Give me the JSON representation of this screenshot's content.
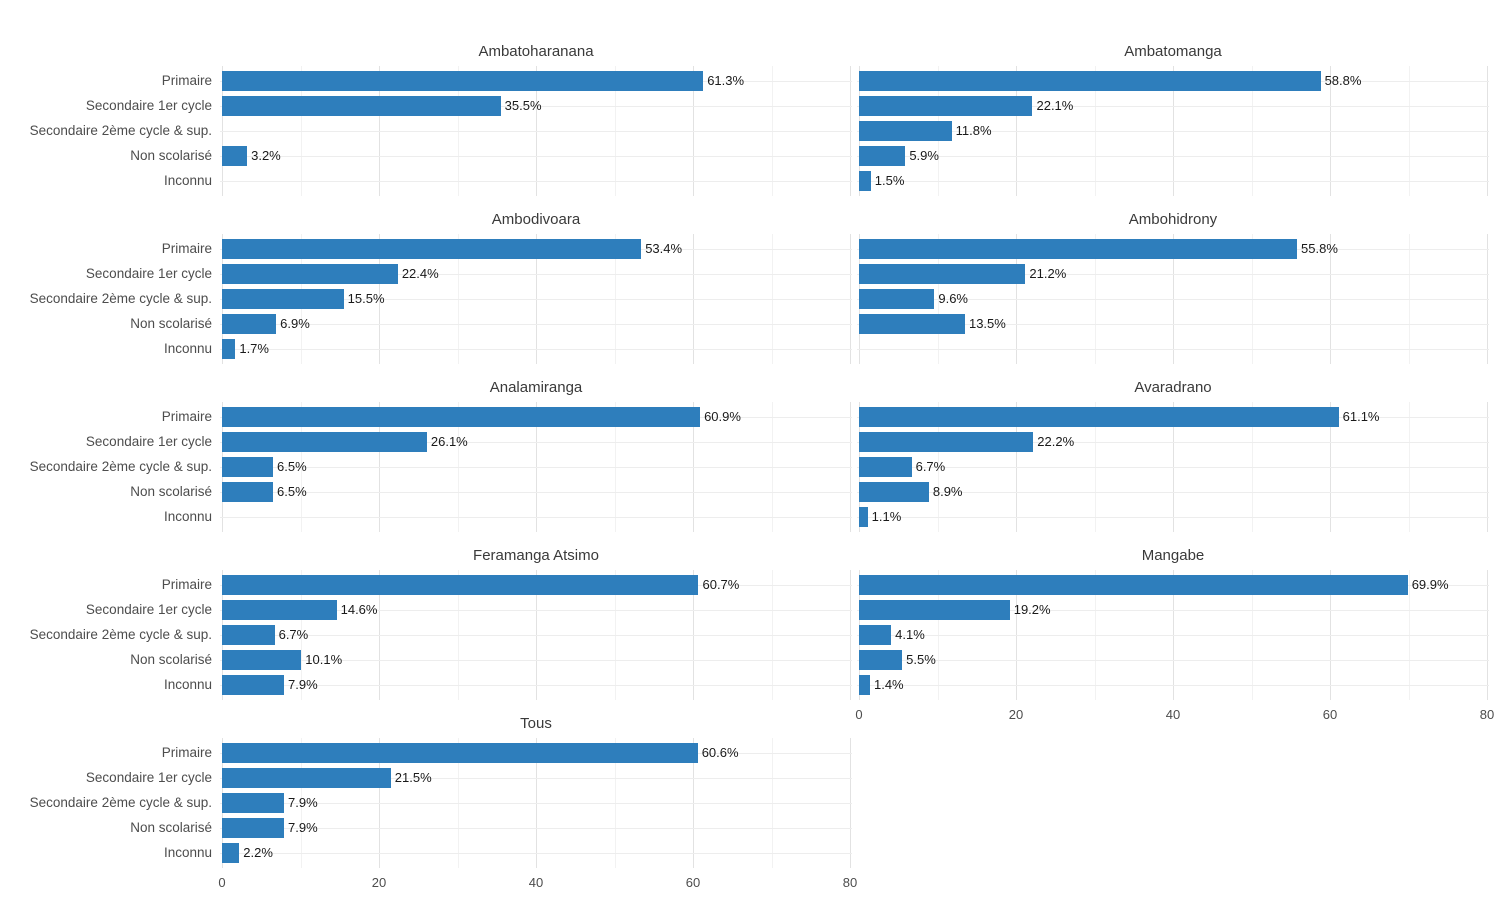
{
  "chart_data": {
    "type": "bar",
    "orientation": "horizontal",
    "title": "",
    "xlabel": "",
    "ylabel": "",
    "xlim": [
      0,
      80
    ],
    "x_ticks": [
      0,
      20,
      40,
      60,
      80
    ],
    "x_minor_ticks": [
      10,
      30,
      50,
      70
    ],
    "grid": true,
    "bar_color": "#2e7ebc",
    "categories": [
      "Primaire",
      "Secondaire 1er cycle",
      "Secondaire 2ème cycle & sup.",
      "Non scolarisé",
      "Inconnu"
    ],
    "facets": [
      {
        "title": "Ambatoharanana",
        "values": [
          61.3,
          35.5,
          null,
          3.2,
          null
        ],
        "labels": [
          "61.3%",
          "35.5%",
          null,
          "3.2%",
          null
        ],
        "show_x_axis": false
      },
      {
        "title": "Ambatomanga",
        "values": [
          58.8,
          22.1,
          11.8,
          5.9,
          1.5
        ],
        "labels": [
          "58.8%",
          "22.1%",
          "11.8%",
          "5.9%",
          "1.5%"
        ],
        "show_x_axis": false
      },
      {
        "title": "Ambodivoara",
        "values": [
          53.4,
          22.4,
          15.5,
          6.9,
          1.7
        ],
        "labels": [
          "53.4%",
          "22.4%",
          "15.5%",
          "6.9%",
          "1.7%"
        ],
        "show_x_axis": false
      },
      {
        "title": "Ambohidrony",
        "values": [
          55.8,
          21.2,
          9.6,
          13.5,
          null
        ],
        "labels": [
          "55.8%",
          "21.2%",
          "9.6%",
          "13.5%",
          null
        ],
        "show_x_axis": false
      },
      {
        "title": "Analamiranga",
        "values": [
          60.9,
          26.1,
          6.5,
          6.5,
          null
        ],
        "labels": [
          "60.9%",
          "26.1%",
          "6.5%",
          "6.5%",
          null
        ],
        "show_x_axis": false
      },
      {
        "title": "Avaradrano",
        "values": [
          61.1,
          22.2,
          6.7,
          8.9,
          1.1
        ],
        "labels": [
          "61.1%",
          "22.2%",
          "6.7%",
          "8.9%",
          "1.1%"
        ],
        "show_x_axis": false
      },
      {
        "title": "Feramanga Atsimo",
        "values": [
          60.7,
          14.6,
          6.7,
          10.1,
          7.9
        ],
        "labels": [
          "60.7%",
          "14.6%",
          "6.7%",
          "10.1%",
          "7.9%"
        ],
        "show_x_axis": false
      },
      {
        "title": "Mangabe",
        "values": [
          69.9,
          19.2,
          4.1,
          5.5,
          1.4
        ],
        "labels": [
          "69.9%",
          "19.2%",
          "4.1%",
          "5.5%",
          "1.4%"
        ],
        "show_x_axis": true
      },
      {
        "title": "Tous",
        "values": [
          60.6,
          21.5,
          7.9,
          7.9,
          2.2
        ],
        "labels": [
          "60.6%",
          "21.5%",
          "7.9%",
          "7.9%",
          "2.2%"
        ],
        "show_x_axis": true
      }
    ]
  }
}
